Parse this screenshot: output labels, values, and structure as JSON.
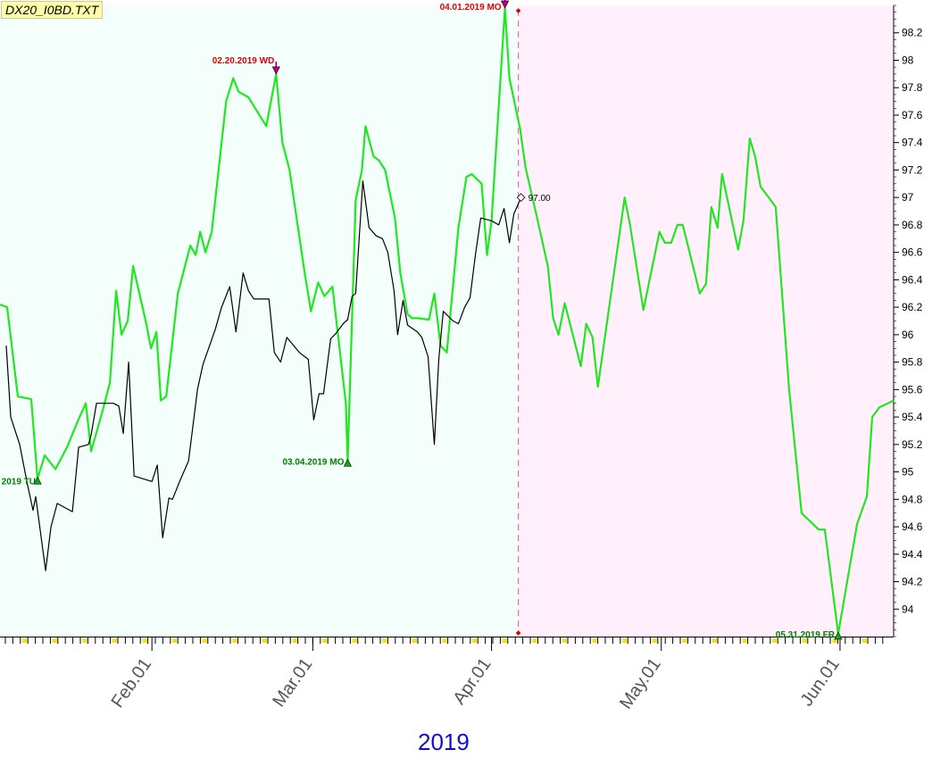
{
  "file_label": "DX20_I0BD.TXT",
  "year_label": "2019",
  "colors": {
    "plot_bg_left": "#f4fffc",
    "plot_bg_right": "#fff0fc",
    "primary_line": "#22e622",
    "secondary_line": "#000000",
    "marker_high": "#c0006c",
    "marker_low": "#22a022",
    "annotation_high": "#e00000",
    "annotation_low": "#008000",
    "year_label": "#1010c8",
    "x_tick_label": "#555555"
  },
  "chart_data": {
    "type": "line",
    "title": "",
    "xlabel": "2019",
    "ylabel": "",
    "ylim": [
      93.8,
      98.4
    ],
    "xlim": [
      0,
      100
    ],
    "y_ticks": [
      94,
      94.2,
      94.4,
      94.6,
      94.8,
      95,
      95.2,
      95.4,
      95.6,
      95.8,
      96,
      96.2,
      96.4,
      96.6,
      96.8,
      97,
      97.2,
      97.4,
      97.6,
      97.8,
      98,
      98.2
    ],
    "x_ticks": [
      {
        "label": "Feb.01",
        "x": 17
      },
      {
        "label": "Mar.01",
        "x": 35
      },
      {
        "label": "Apr.01",
        "x": 55
      },
      {
        "label": "May.01",
        "x": 74
      },
      {
        "label": "Jun.01",
        "x": 94
      }
    ],
    "divider_x": 58,
    "grid": false,
    "series": [
      {
        "style": "primary",
        "points": [
          [
            0,
            96.22
          ],
          [
            0.8,
            96.2
          ],
          [
            2,
            95.55
          ],
          [
            3.5,
            95.53
          ],
          [
            4.2,
            94.95
          ],
          [
            5,
            95.12
          ],
          [
            6.2,
            95.02
          ],
          [
            7.5,
            95.18
          ],
          [
            8.7,
            95.37
          ],
          [
            9.6,
            95.5
          ],
          [
            10.2,
            95.15
          ],
          [
            11.5,
            95.45
          ],
          [
            12.3,
            95.65
          ],
          [
            13,
            96.32
          ],
          [
            13.6,
            96.0
          ],
          [
            14.3,
            96.1
          ],
          [
            14.9,
            96.5
          ],
          [
            16.3,
            96.1
          ],
          [
            16.9,
            95.9
          ],
          [
            17.5,
            96.02
          ],
          [
            18,
            95.52
          ],
          [
            18.6,
            95.55
          ],
          [
            19.9,
            96.3
          ],
          [
            21.3,
            96.65
          ],
          [
            21.9,
            96.58
          ],
          [
            22.4,
            96.75
          ],
          [
            23,
            96.6
          ],
          [
            23.7,
            96.75
          ],
          [
            25.3,
            97.7
          ],
          [
            26.1,
            97.87
          ],
          [
            26.7,
            97.77
          ],
          [
            27.8,
            97.73
          ],
          [
            29.8,
            97.52
          ],
          [
            30.9,
            97.9
          ],
          [
            31.6,
            97.4
          ],
          [
            32.4,
            97.2
          ],
          [
            34.1,
            96.45
          ],
          [
            34.8,
            96.17
          ],
          [
            35.6,
            96.38
          ],
          [
            36.3,
            96.28
          ],
          [
            37.2,
            96.35
          ],
          [
            38.7,
            95.5
          ],
          [
            38.9,
            95.08
          ],
          [
            39.8,
            96.98
          ],
          [
            40.5,
            97.2
          ],
          [
            40.9,
            97.52
          ],
          [
            41.8,
            97.3
          ],
          [
            42.4,
            97.27
          ],
          [
            43.1,
            97.2
          ],
          [
            44.2,
            96.85
          ],
          [
            44.8,
            96.45
          ],
          [
            45.6,
            96.15
          ],
          [
            46.1,
            96.12
          ],
          [
            46.7,
            96.12
          ],
          [
            48,
            96.11
          ],
          [
            48.6,
            96.3
          ],
          [
            49.3,
            95.92
          ],
          [
            50,
            95.87
          ],
          [
            51.3,
            96.78
          ],
          [
            52.2,
            97.15
          ],
          [
            52.8,
            97.17
          ],
          [
            53.9,
            97.1
          ],
          [
            54.5,
            96.58
          ],
          [
            55,
            96.83
          ],
          [
            56.5,
            98.38
          ],
          [
            57,
            97.87
          ],
          [
            58.2,
            97.5
          ],
          [
            58.8,
            97.22
          ],
          [
            60,
            96.88
          ],
          [
            61.3,
            96.5
          ],
          [
            61.9,
            96.12
          ],
          [
            62.5,
            96.0
          ],
          [
            63.2,
            96.23
          ],
          [
            65,
            95.77
          ],
          [
            65.6,
            96.08
          ],
          [
            66.3,
            95.98
          ],
          [
            66.9,
            95.62
          ],
          [
            69.9,
            97.0
          ],
          [
            70.5,
            96.8
          ],
          [
            72,
            96.18
          ],
          [
            73.8,
            96.75
          ],
          [
            74.4,
            96.67
          ],
          [
            75.1,
            96.67
          ],
          [
            75.8,
            96.8
          ],
          [
            76.4,
            96.8
          ],
          [
            78.3,
            96.3
          ],
          [
            79,
            96.37
          ],
          [
            79.6,
            96.93
          ],
          [
            80.3,
            96.78
          ],
          [
            80.8,
            97.17
          ],
          [
            82.6,
            96.62
          ],
          [
            83.2,
            96.83
          ],
          [
            83.9,
            97.43
          ],
          [
            84.5,
            97.3
          ],
          [
            85.1,
            97.08
          ],
          [
            86.8,
            96.93
          ],
          [
            88.3,
            95.6
          ],
          [
            89.7,
            94.7
          ],
          [
            91.6,
            94.58
          ],
          [
            92.3,
            94.58
          ],
          [
            93.8,
            93.82
          ],
          [
            95.9,
            94.62
          ],
          [
            97,
            94.82
          ],
          [
            97.6,
            95.4
          ],
          [
            98.4,
            95.47
          ],
          [
            100,
            95.52
          ]
        ]
      },
      {
        "style": "secondary",
        "points": [
          [
            0.7,
            95.92
          ],
          [
            1.2,
            95.4
          ],
          [
            2.2,
            95.2
          ],
          [
            3.1,
            94.9
          ],
          [
            3.7,
            94.72
          ],
          [
            4,
            94.82
          ],
          [
            5.1,
            94.28
          ],
          [
            5.7,
            94.6
          ],
          [
            6.4,
            94.77
          ],
          [
            8.1,
            94.71
          ],
          [
            8.8,
            95.18
          ],
          [
            9.9,
            95.2
          ],
          [
            10.2,
            95.27
          ],
          [
            10.8,
            95.5
          ],
          [
            12.7,
            95.5
          ],
          [
            13.3,
            95.48
          ],
          [
            13.8,
            95.28
          ],
          [
            14.4,
            95.8
          ],
          [
            15,
            94.97
          ],
          [
            17,
            94.93
          ],
          [
            17.6,
            95.05
          ],
          [
            18.2,
            94.52
          ],
          [
            18.9,
            94.81
          ],
          [
            19.3,
            94.8
          ],
          [
            20.1,
            94.93
          ],
          [
            21.1,
            95.08
          ],
          [
            22.1,
            95.6
          ],
          [
            22.7,
            95.78
          ],
          [
            24.1,
            96.04
          ],
          [
            24.8,
            96.2
          ],
          [
            25.7,
            96.35
          ],
          [
            26.4,
            96.02
          ],
          [
            27.2,
            96.45
          ],
          [
            27.8,
            96.32
          ],
          [
            28.4,
            96.26
          ],
          [
            30.1,
            96.26
          ],
          [
            30.7,
            95.87
          ],
          [
            31.4,
            95.8
          ],
          [
            32.1,
            95.98
          ],
          [
            33.5,
            95.87
          ],
          [
            34.5,
            95.82
          ],
          [
            35.1,
            95.38
          ],
          [
            35.7,
            95.57
          ],
          [
            36.2,
            95.57
          ],
          [
            37,
            95.97
          ],
          [
            37.6,
            96.01
          ],
          [
            38.4,
            96.08
          ],
          [
            38.9,
            96.11
          ],
          [
            39.4,
            96.28
          ],
          [
            39.8,
            96.3
          ],
          [
            40.6,
            97.12
          ],
          [
            41.3,
            96.78
          ],
          [
            42.1,
            96.72
          ],
          [
            42.8,
            96.7
          ],
          [
            43.4,
            96.6
          ],
          [
            44.1,
            96.32
          ],
          [
            44.5,
            96.0
          ],
          [
            45.1,
            96.25
          ],
          [
            45.6,
            96.07
          ],
          [
            46.7,
            96.02
          ],
          [
            47.2,
            95.98
          ],
          [
            47.9,
            95.84
          ],
          [
            48.6,
            95.2
          ],
          [
            49.1,
            95.82
          ],
          [
            49.6,
            96.17
          ],
          [
            50.7,
            96.1
          ],
          [
            51.3,
            96.08
          ],
          [
            52,
            96.2
          ],
          [
            52.6,
            96.27
          ],
          [
            53.2,
            96.58
          ],
          [
            53.8,
            96.85
          ],
          [
            55,
            96.83
          ],
          [
            55.8,
            96.8
          ],
          [
            56.4,
            96.92
          ],
          [
            57,
            96.67
          ],
          [
            57.5,
            96.88
          ],
          [
            58.3,
            97.0
          ]
        ]
      }
    ],
    "end_marker": {
      "x": 58.3,
      "y": 97.0,
      "label": "97.00"
    },
    "annotations": [
      {
        "kind": "high",
        "x": 30.9,
        "y": 97.9,
        "label": "02.20.2019 WD",
        "label_pos": "left-above"
      },
      {
        "kind": "high",
        "x": 56.5,
        "y": 98.38,
        "label": "04.01.2019 MO",
        "label_pos": "left"
      },
      {
        "kind": "low",
        "x": 38.9,
        "y": 95.08,
        "label": "03.04.2019 MO",
        "label_pos": "left"
      },
      {
        "kind": "low",
        "x": 4.2,
        "y": 94.95,
        "label": "2019 TU",
        "label_pos": "left-below"
      },
      {
        "kind": "low",
        "x": 93.8,
        "y": 93.82,
        "label": "05.31.2019 FR",
        "label_pos": "left"
      }
    ]
  }
}
